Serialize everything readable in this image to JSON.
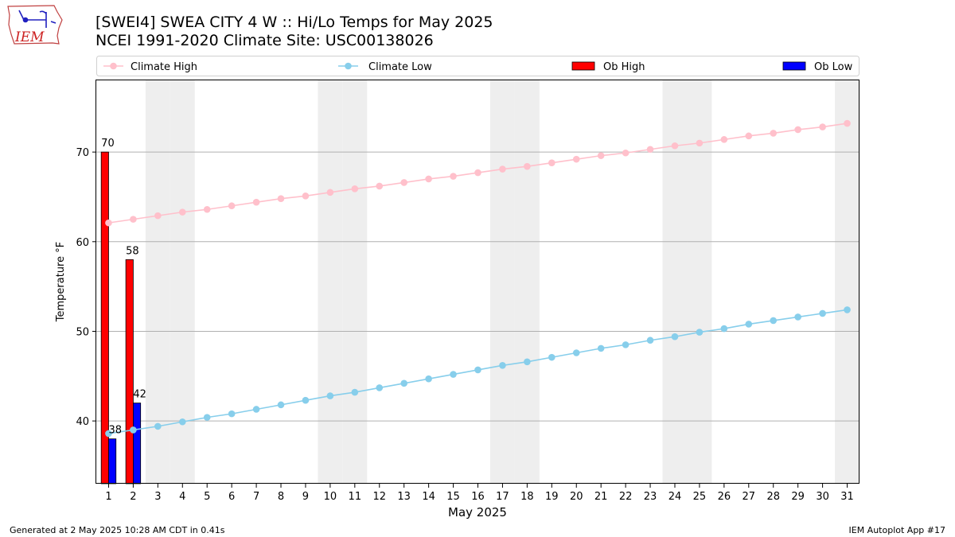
{
  "header": {
    "title_line1": "[SWEI4] SWEA CITY 4 W :: Hi/Lo Temps for May 2025",
    "title_line2": "NCEI 1991-2020 Climate Site: USC00138026"
  },
  "logo": {
    "text": "IEM",
    "icon": "iowa-state-outline-icon"
  },
  "footer": {
    "left": "Generated at 2 May 2025 10:28 AM CDT in 0.41s",
    "right": "IEM Autoplot App #17"
  },
  "chart_data": {
    "type": "bar",
    "xlabel": "May 2025",
    "ylabel": "Temperature °F",
    "xlim": [
      0.5,
      31.5
    ],
    "ylim": [
      33,
      78
    ],
    "yticks": [
      40,
      50,
      60,
      70
    ],
    "x": [
      1,
      2,
      3,
      4,
      5,
      6,
      7,
      8,
      9,
      10,
      11,
      12,
      13,
      14,
      15,
      16,
      17,
      18,
      19,
      20,
      21,
      22,
      23,
      24,
      25,
      26,
      27,
      28,
      29,
      30,
      31
    ],
    "weekend_days": [
      3,
      4,
      10,
      11,
      17,
      18,
      24,
      25,
      31
    ],
    "grid": "horizontal",
    "legend_position": "top",
    "series": [
      {
        "name": "Climate High",
        "kind": "line",
        "color": "#ffc0cb",
        "values": [
          62.1,
          62.5,
          62.9,
          63.3,
          63.6,
          64.0,
          64.4,
          64.8,
          65.1,
          65.5,
          65.9,
          66.2,
          66.6,
          67.0,
          67.3,
          67.7,
          68.1,
          68.4,
          68.8,
          69.2,
          69.6,
          69.9,
          70.3,
          70.7,
          71.0,
          71.4,
          71.8,
          72.1,
          72.5,
          72.8,
          73.2
        ]
      },
      {
        "name": "Climate Low",
        "kind": "line",
        "color": "#87ceeb",
        "values": [
          38.6,
          39.0,
          39.4,
          39.9,
          40.4,
          40.8,
          41.3,
          41.8,
          42.3,
          42.8,
          43.2,
          43.7,
          44.2,
          44.7,
          45.2,
          45.7,
          46.2,
          46.6,
          47.1,
          47.6,
          48.1,
          48.5,
          49.0,
          49.4,
          49.9,
          50.3,
          50.8,
          51.2,
          51.6,
          52.0,
          52.4
        ]
      },
      {
        "name": "Ob High",
        "kind": "bar",
        "color": "#ff0000",
        "x": [
          1,
          2
        ],
        "values": [
          70,
          58
        ],
        "labels": [
          "70",
          "58"
        ]
      },
      {
        "name": "Ob Low",
        "kind": "bar",
        "color": "#0000ff",
        "x": [
          1,
          2
        ],
        "values": [
          38,
          42
        ],
        "labels": [
          "38",
          "42"
        ]
      }
    ]
  }
}
